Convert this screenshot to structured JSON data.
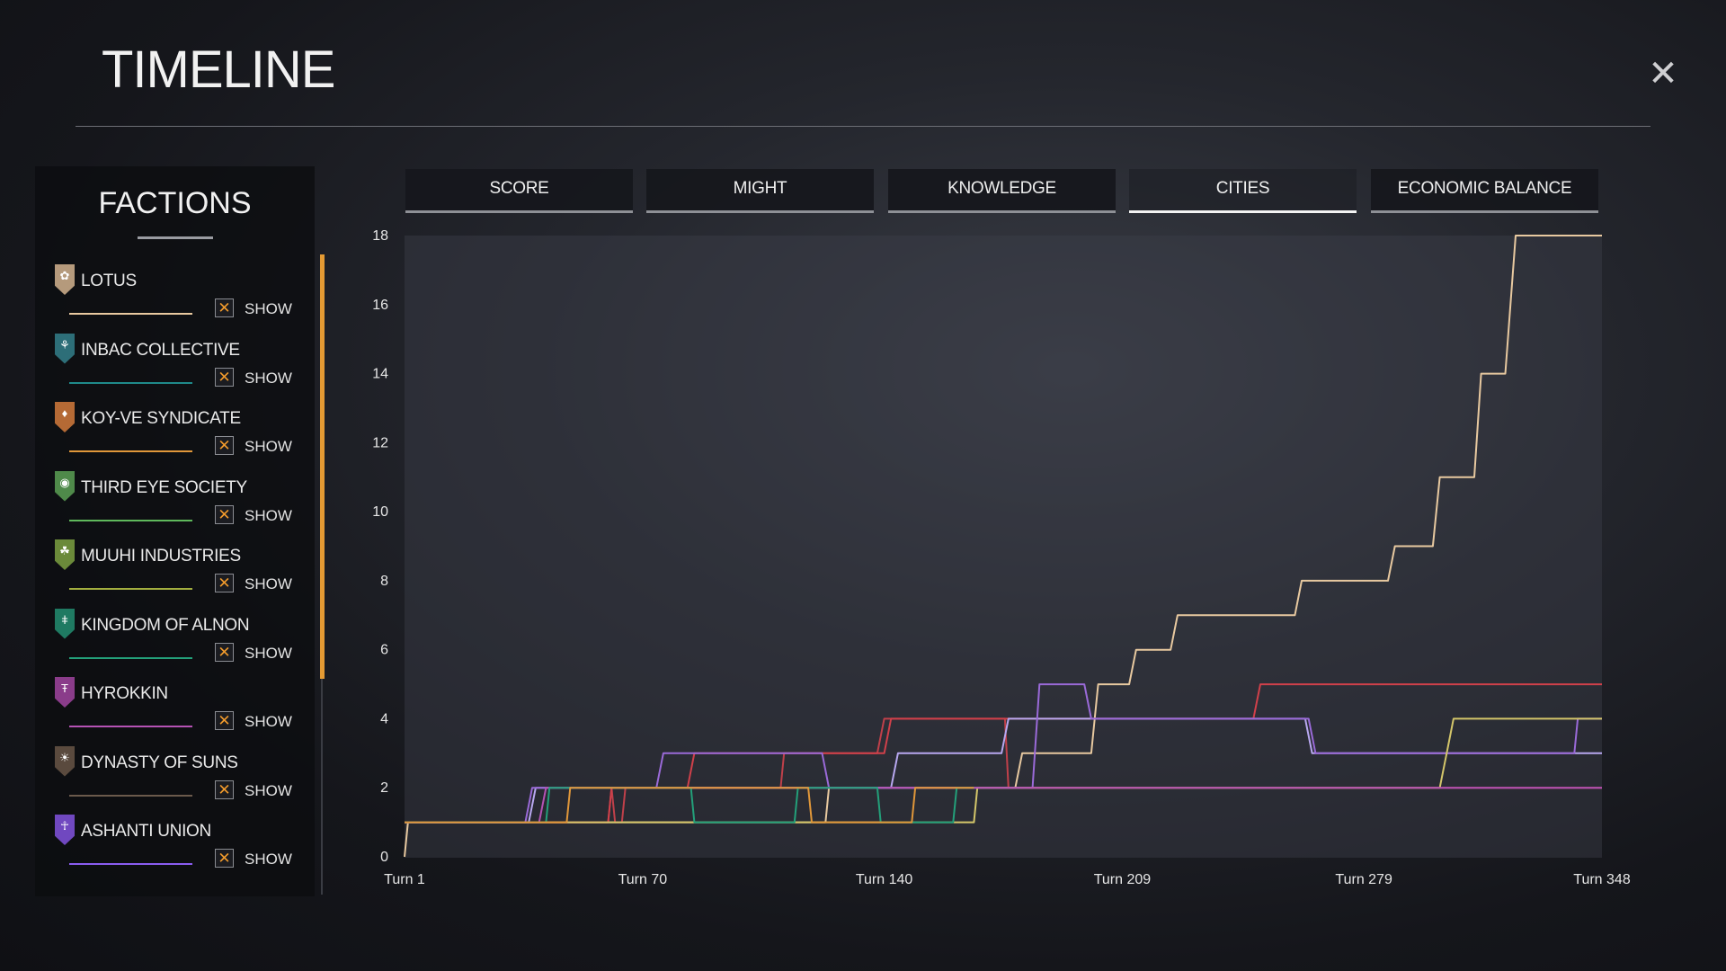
{
  "header": {
    "title": "TIMELINE",
    "close_icon": "close-icon"
  },
  "sidebar": {
    "title": "FACTIONS",
    "show_label": "SHOW",
    "factions": [
      {
        "name": "LOTUS",
        "color": "#e8c9a0",
        "badge_color": "#b59a7c",
        "icon": "lotus-icon",
        "shown": true
      },
      {
        "name": "INBAC COLLECTIVE",
        "color": "#1f8a8a",
        "badge_color": "#2d6e78",
        "icon": "inbac-icon",
        "shown": true
      },
      {
        "name": "KOY-VE SYNDICATE",
        "color": "#e0973a",
        "badge_color": "#b56a35",
        "icon": "koyve-icon",
        "shown": true
      },
      {
        "name": "THIRD EYE SOCIETY",
        "color": "#5fb85c",
        "badge_color": "#4f8a4a",
        "icon": "eye-icon",
        "shown": true
      },
      {
        "name": "MUUHI INDUSTRIES",
        "color": "#a2ae3f",
        "badge_color": "#6b8a3a",
        "icon": "muuhi-icon",
        "shown": true
      },
      {
        "name": "KINGDOM OF ALNON",
        "color": "#23a07a",
        "badge_color": "#1f7a62",
        "icon": "alnon-icon",
        "shown": true
      },
      {
        "name": "HYROKKIN",
        "color": "#b452b4",
        "badge_color": "#8a3c8a",
        "icon": "hyrokkin-icon",
        "shown": true
      },
      {
        "name": "DYNASTY OF SUNS",
        "color": "#6b5a4c",
        "badge_color": "#5a4a3e",
        "icon": "suns-icon",
        "shown": true
      },
      {
        "name": "ASHANTI UNION",
        "color": "#8a5cf0",
        "badge_color": "#7048c0",
        "icon": "ashanti-icon",
        "shown": true
      }
    ]
  },
  "tabs": [
    {
      "label": "SCORE",
      "active": false
    },
    {
      "label": "MIGHT",
      "active": false
    },
    {
      "label": "KNOWLEDGE",
      "active": false
    },
    {
      "label": "CITIES",
      "active": true
    },
    {
      "label": "ECONOMIC BALANCE",
      "active": false
    }
  ],
  "chart_data": {
    "type": "line",
    "title": "",
    "xlabel": "",
    "ylabel": "",
    "x_range": [
      1,
      348
    ],
    "ylim": [
      0,
      18
    ],
    "y_ticks": [
      0,
      2,
      4,
      6,
      8,
      10,
      12,
      14,
      16,
      18
    ],
    "x_tick_labels": [
      {
        "value": 1,
        "label": "Turn 1"
      },
      {
        "value": 70,
        "label": "Turn 70"
      },
      {
        "value": 140,
        "label": "Turn 140"
      },
      {
        "value": 209,
        "label": "Turn 209"
      },
      {
        "value": 279,
        "label": "Turn 279"
      },
      {
        "value": 348,
        "label": "Turn 348"
      }
    ],
    "step": true,
    "series": [
      {
        "color": "#e8c9a0",
        "points": [
          [
            1,
            0
          ],
          [
            2,
            1
          ],
          [
            123,
            1
          ],
          [
            124,
            2
          ],
          [
            178,
            2
          ],
          [
            180,
            3
          ],
          [
            200,
            3
          ],
          [
            202,
            5
          ],
          [
            211,
            5
          ],
          [
            213,
            6
          ],
          [
            223,
            6
          ],
          [
            225,
            7
          ],
          [
            259,
            7
          ],
          [
            261,
            8
          ],
          [
            286,
            8
          ],
          [
            288,
            9
          ],
          [
            299,
            9
          ],
          [
            301,
            11
          ],
          [
            311,
            11
          ],
          [
            313,
            14
          ],
          [
            320,
            14
          ],
          [
            323,
            18
          ],
          [
            348,
            18
          ]
        ]
      },
      {
        "color": "#c0404a",
        "points": [
          [
            1,
            1
          ],
          [
            60,
            1
          ],
          [
            61,
            2
          ],
          [
            62,
            1
          ],
          [
            64,
            1
          ],
          [
            65,
            2
          ],
          [
            110,
            2
          ],
          [
            111,
            3
          ],
          [
            138,
            3
          ],
          [
            140,
            4
          ],
          [
            175,
            4
          ],
          [
            176,
            2
          ],
          [
            350,
            2
          ]
        ]
      },
      {
        "color": "#d0404a",
        "points": [
          [
            1,
            1
          ],
          [
            60,
            1
          ],
          [
            61,
            2
          ],
          [
            83,
            2
          ],
          [
            85,
            3
          ],
          [
            140,
            3
          ],
          [
            142,
            4
          ],
          [
            247,
            4
          ],
          [
            249,
            5
          ],
          [
            348,
            5
          ]
        ]
      },
      {
        "color": "#b8a8f0",
        "points": [
          [
            1,
            1
          ],
          [
            37,
            1
          ],
          [
            39,
            2
          ],
          [
            142,
            2
          ],
          [
            144,
            3
          ],
          [
            174,
            3
          ],
          [
            176,
            4
          ],
          [
            262,
            4
          ],
          [
            264,
            3
          ],
          [
            288,
            3
          ],
          [
            290,
            3
          ],
          [
            348,
            3
          ]
        ]
      },
      {
        "color": "#9a6ad8",
        "points": [
          [
            1,
            1
          ],
          [
            36,
            1
          ],
          [
            38,
            2
          ],
          [
            74,
            2
          ],
          [
            76,
            3
          ],
          [
            122,
            3
          ],
          [
            124,
            2
          ],
          [
            183,
            2
          ],
          [
            185,
            5
          ],
          [
            198,
            5
          ],
          [
            200,
            4
          ],
          [
            263,
            4
          ],
          [
            265,
            3
          ],
          [
            340,
            3
          ],
          [
            341,
            4
          ],
          [
            348,
            4
          ]
        ]
      },
      {
        "color": "#d4c66a",
        "points": [
          [
            1,
            1
          ],
          [
            166,
            1
          ],
          [
            167,
            2
          ],
          [
            301,
            2
          ],
          [
            303,
            3
          ],
          [
            305,
            4
          ],
          [
            348,
            4
          ]
        ]
      },
      {
        "color": "#b452b4",
        "points": [
          [
            1,
            1
          ],
          [
            40,
            1
          ],
          [
            42,
            2
          ],
          [
            348,
            2
          ]
        ]
      },
      {
        "color": "#23a07a",
        "points": [
          [
            1,
            1
          ],
          [
            42,
            1
          ],
          [
            43,
            2
          ],
          [
            84,
            2
          ],
          [
            85,
            1
          ],
          [
            114,
            1
          ],
          [
            115,
            2
          ],
          [
            138,
            2
          ],
          [
            139,
            1
          ],
          [
            160,
            1
          ],
          [
            161,
            2
          ],
          [
            166,
            2
          ]
        ]
      },
      {
        "color": "#e0973a",
        "points": [
          [
            1,
            1
          ],
          [
            48,
            1
          ],
          [
            49,
            2
          ],
          [
            118,
            2
          ],
          [
            119,
            1
          ],
          [
            148,
            1
          ],
          [
            149,
            2
          ],
          [
            166,
            2
          ]
        ]
      }
    ]
  }
}
